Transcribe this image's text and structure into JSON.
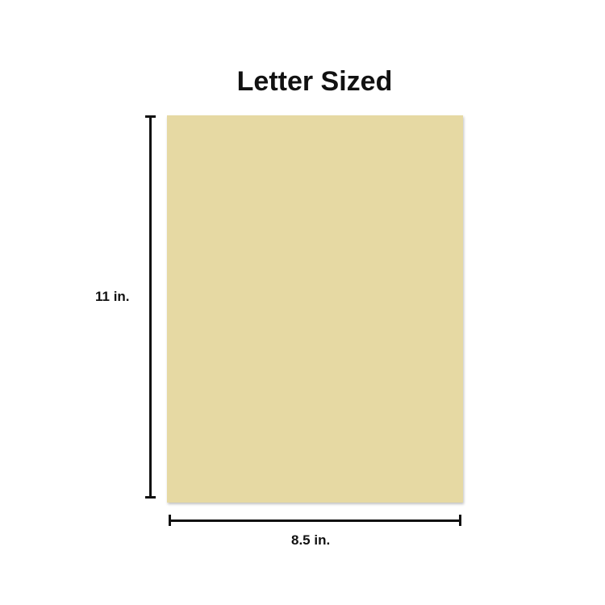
{
  "title": "Letter Sized",
  "paper": {
    "color": "#e6d9a3"
  },
  "dimensions": {
    "height_label": "11 in.",
    "width_label": "8.5 in."
  }
}
